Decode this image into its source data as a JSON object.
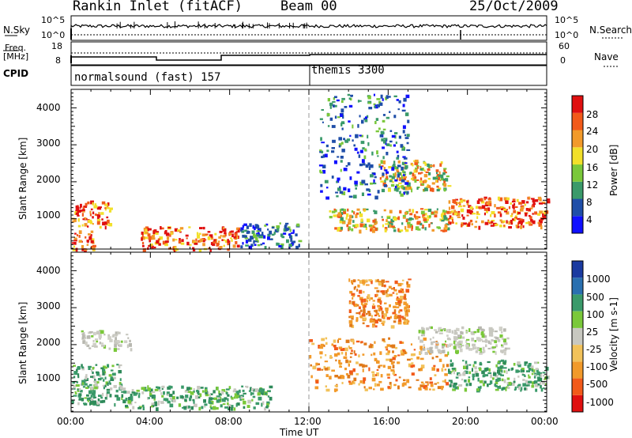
{
  "header": {
    "title": "Rankin Inlet (fitACF)",
    "beam": "Beam 00",
    "date": "25/Oct/2009"
  },
  "strips": {
    "nsky_label": "N.Sky",
    "nsky_ticks": [
      "10^5",
      "10^0"
    ],
    "nsearch_label": "N.Search",
    "nsearch_ticks": [
      "10^5",
      "10^0"
    ],
    "freq_label": "Freq.",
    "freq_unit": "[MHz]",
    "freq_ticks": [
      "18",
      "8"
    ],
    "nave_label": "Nave",
    "nave_ticks": [
      "60",
      "0"
    ],
    "cpid_label": "CPID",
    "cpid_modes": [
      "normalsound (fast) 157",
      "themis 3300"
    ]
  },
  "chart_data": [
    {
      "type": "heatmap",
      "panel": "power",
      "ylabel": "Slant Range [km]",
      "xlabel": "",
      "ylim": [
        180,
        4500
      ],
      "yticks": [
        "1000",
        "2000",
        "3000",
        "4000"
      ],
      "colorbar": {
        "label": "Power [dB]",
        "ticks": [
          "28",
          "24",
          "20",
          "16",
          "12",
          "8",
          "4"
        ],
        "colors": [
          "#1010ff",
          "#1f4ea8",
          "#3a9a6a",
          "#7ac83a",
          "#f2e02a",
          "#f29a2a",
          "#f25a1a",
          "#e01010"
        ]
      },
      "echo_regions": [
        {
          "t0": 0.0,
          "t1": 1.2,
          "r0": 180,
          "r1": 700,
          "level": "high"
        },
        {
          "t0": 0.0,
          "t1": 2.0,
          "r0": 800,
          "r1": 1500,
          "level": "high"
        },
        {
          "t0": 3.5,
          "t1": 8.5,
          "r0": 180,
          "r1": 800,
          "level": "high"
        },
        {
          "t0": 8.5,
          "t1": 11.5,
          "r0": 250,
          "r1": 900,
          "level": "low"
        },
        {
          "t0": 13.0,
          "t1": 19.0,
          "r0": 700,
          "r1": 1300,
          "level": "medium"
        },
        {
          "t0": 19.0,
          "t1": 24.0,
          "r0": 800,
          "r1": 1600,
          "level": "high"
        },
        {
          "t0": 15.5,
          "t1": 19.0,
          "r0": 1800,
          "r1": 2600,
          "level": "medium"
        },
        {
          "t0": 12.5,
          "t1": 17.0,
          "r0": 1600,
          "r1": 4400,
          "level": "low"
        }
      ]
    },
    {
      "type": "heatmap",
      "panel": "velocity",
      "ylabel": "Slant Range [km]",
      "xlabel": "Time UT",
      "ylim": [
        180,
        4500
      ],
      "yticks": [
        "1000",
        "2000",
        "3000",
        "4000"
      ],
      "xticks": [
        "00:00",
        "04:00",
        "08:00",
        "12:00",
        "16:00",
        "20:00",
        "00:00"
      ],
      "colorbar": {
        "label": "Velocity [m s-1]",
        "ticks": [
          "1000",
          "500",
          "100",
          "25",
          "-25",
          "-100",
          "-500",
          "-1000"
        ],
        "colors": [
          "#e01010",
          "#f25a1a",
          "#f29a2a",
          "#f2c25a",
          "#c8c8c0",
          "#7ac83a",
          "#3a9a6a",
          "#2a70b0",
          "#1a3aa0"
        ]
      },
      "echo_regions": [
        {
          "t0": 0.0,
          "t1": 2.5,
          "r0": 400,
          "r1": 1500,
          "level": "positive"
        },
        {
          "t0": 2.5,
          "t1": 10.0,
          "r0": 300,
          "r1": 900,
          "level": "positive"
        },
        {
          "t0": 0.5,
          "t1": 3.0,
          "r0": 1900,
          "r1": 2400,
          "level": "zero"
        },
        {
          "t0": 12.0,
          "t1": 19.0,
          "r0": 800,
          "r1": 2200,
          "level": "negative"
        },
        {
          "t0": 14.0,
          "t1": 17.0,
          "r0": 2500,
          "r1": 3800,
          "level": "negative"
        },
        {
          "t0": 19.0,
          "t1": 24.0,
          "r0": 800,
          "r1": 1600,
          "level": "positive"
        },
        {
          "t0": 17.5,
          "t1": 22.0,
          "r0": 1800,
          "r1": 2500,
          "level": "zero"
        }
      ]
    }
  ]
}
